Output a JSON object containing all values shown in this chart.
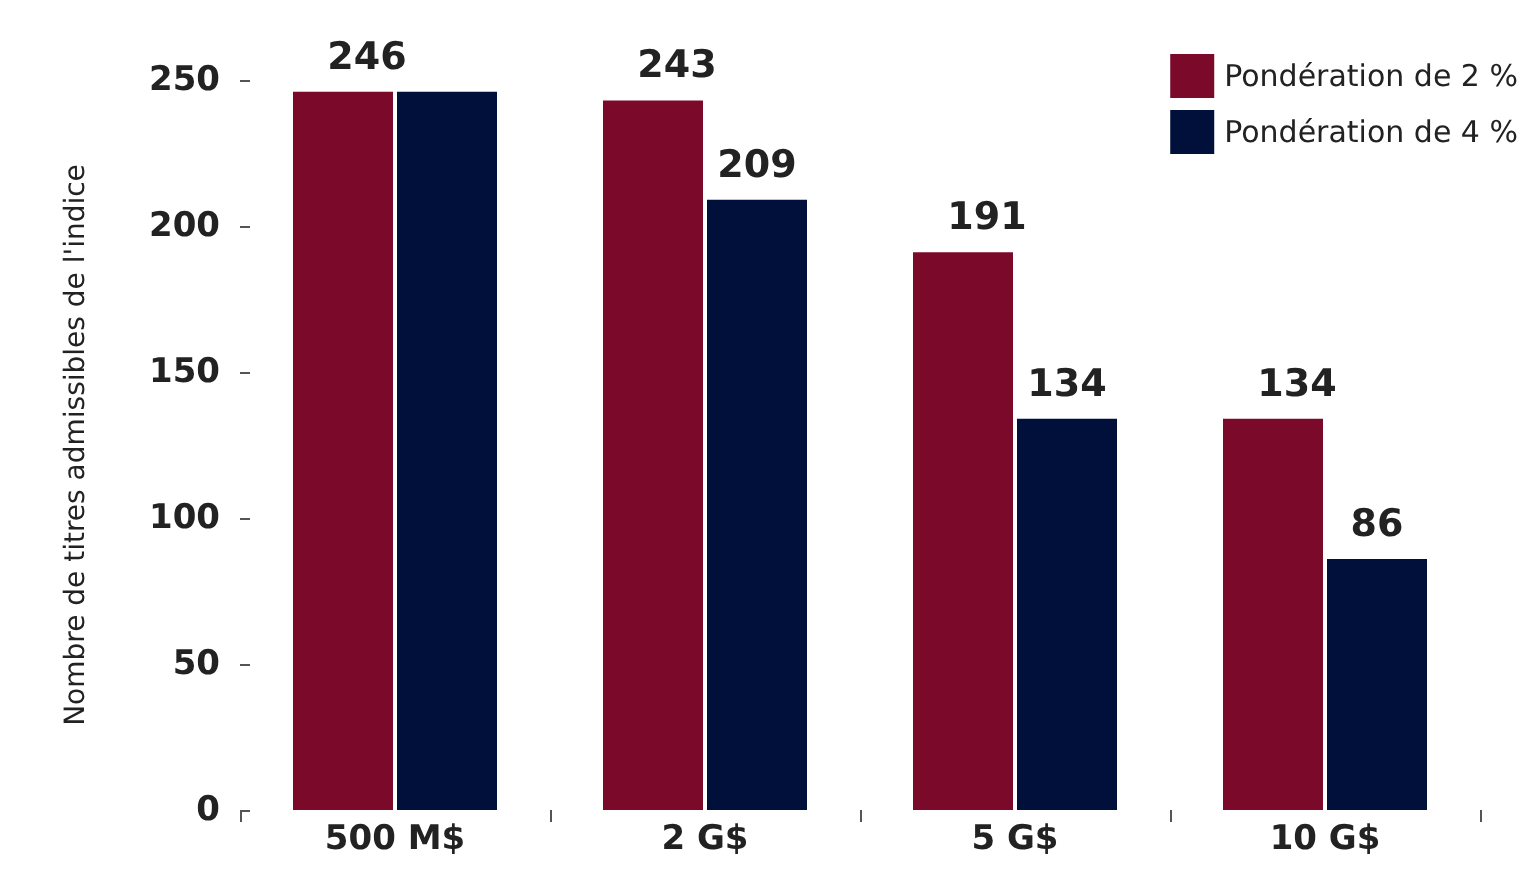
{
  "chart_data": {
    "type": "bar",
    "ylabel": "Nombre de titres admissibles de l'indice",
    "categories": [
      "500 M$",
      "2 G$",
      "5 G$",
      "10 G$"
    ],
    "series": [
      {
        "name": "Pondération de 2 %",
        "color": "#7b0a2a",
        "values": [
          246,
          243,
          191,
          134
        ],
        "value_labels": [
          "246",
          "243",
          "191",
          "134"
        ]
      },
      {
        "name": "Pondération de 4 %",
        "color": "#00103a",
        "values": [
          246,
          209,
          134,
          86
        ],
        "value_labels": [
          null,
          "209",
          "134",
          "86"
        ]
      }
    ],
    "ylim": [
      0,
      250
    ],
    "yticks": [
      0,
      50,
      100,
      150,
      200,
      250
    ],
    "grid": false,
    "legend": "top right"
  }
}
